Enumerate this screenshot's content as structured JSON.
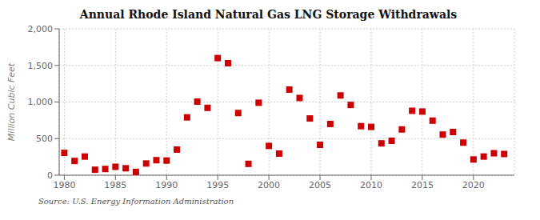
{
  "chart_data": {
    "type": "scatter",
    "title": "Annual Rhode Island Natural Gas LNG Storage Withdrawals",
    "y_label": "Million Cubic Feet",
    "annotation": "Source: U.S. Energy Information Administration",
    "x": [
      1980,
      1981,
      1982,
      1983,
      1984,
      1985,
      1986,
      1987,
      1988,
      1989,
      1990,
      1991,
      1992,
      1993,
      1994,
      1995,
      1996,
      1997,
      1998,
      1999,
      2000,
      2001,
      2002,
      2003,
      2004,
      2005,
      2006,
      2007,
      2008,
      2009,
      2010,
      2011,
      2012,
      2013,
      2014,
      2015,
      2016,
      2017,
      2018,
      2019,
      2020,
      2021,
      2022,
      2023
    ],
    "values": [
      305,
      195,
      255,
      75,
      85,
      115,
      95,
      45,
      160,
      205,
      200,
      350,
      790,
      1005,
      920,
      1600,
      1530,
      850,
      155,
      990,
      400,
      295,
      1170,
      1055,
      775,
      415,
      700,
      1090,
      960,
      670,
      660,
      435,
      470,
      625,
      880,
      870,
      745,
      555,
      590,
      445,
      215,
      255,
      300,
      290
    ],
    "color": "#cc0000",
    "marker": "square",
    "xlim": [
      1979.5,
      2024
    ],
    "ylim": [
      0,
      2000
    ],
    "xticks": [
      1980,
      1985,
      1990,
      1995,
      2000,
      2005,
      2010,
      2015,
      2020
    ],
    "yticks": [
      0,
      500,
      {
        "value": 1000,
        "label": "1,000"
      },
      {
        "value": 1500,
        "label": "1,500"
      },
      {
        "value": 2000,
        "label": "2,000"
      }
    ],
    "grid": true
  }
}
